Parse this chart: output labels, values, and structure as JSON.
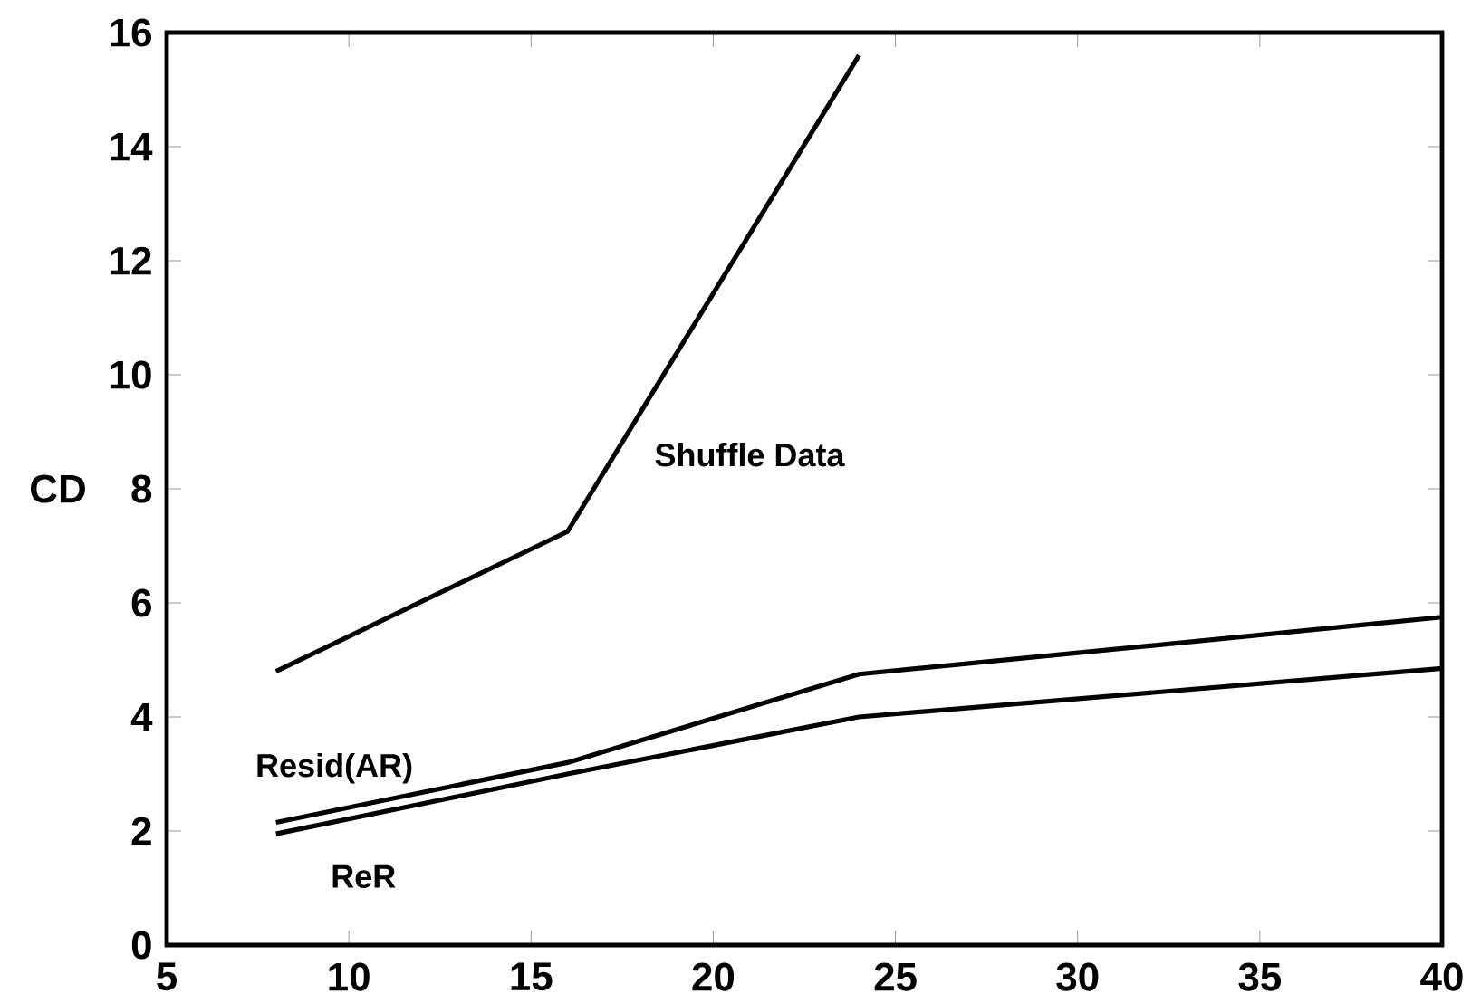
{
  "chart_data": {
    "type": "line",
    "ylabel": "CD",
    "xlim": [
      5,
      40
    ],
    "ylim": [
      0,
      16
    ],
    "xticks": [
      5,
      10,
      15,
      20,
      25,
      30,
      35,
      40
    ],
    "yticks": [
      0,
      2,
      4,
      6,
      8,
      10,
      12,
      14,
      16
    ],
    "grid": false,
    "legend": false,
    "marker": "none",
    "line_style": "solid",
    "series": [
      {
        "name": "Shuffle Data",
        "color": "#000000",
        "x": [
          8,
          16,
          24
        ],
        "values": [
          4.8,
          7.25,
          15.6
        ]
      },
      {
        "name": "Resid(AR)",
        "color": "#000000",
        "x": [
          8,
          16,
          24,
          40
        ],
        "values": [
          2.15,
          3.2,
          4.75,
          5.75
        ]
      },
      {
        "name": "ReR",
        "color": "#000000",
        "x": [
          8,
          16,
          24,
          40
        ],
        "values": [
          1.95,
          3.0,
          4.0,
          4.85
        ]
      }
    ]
  }
}
